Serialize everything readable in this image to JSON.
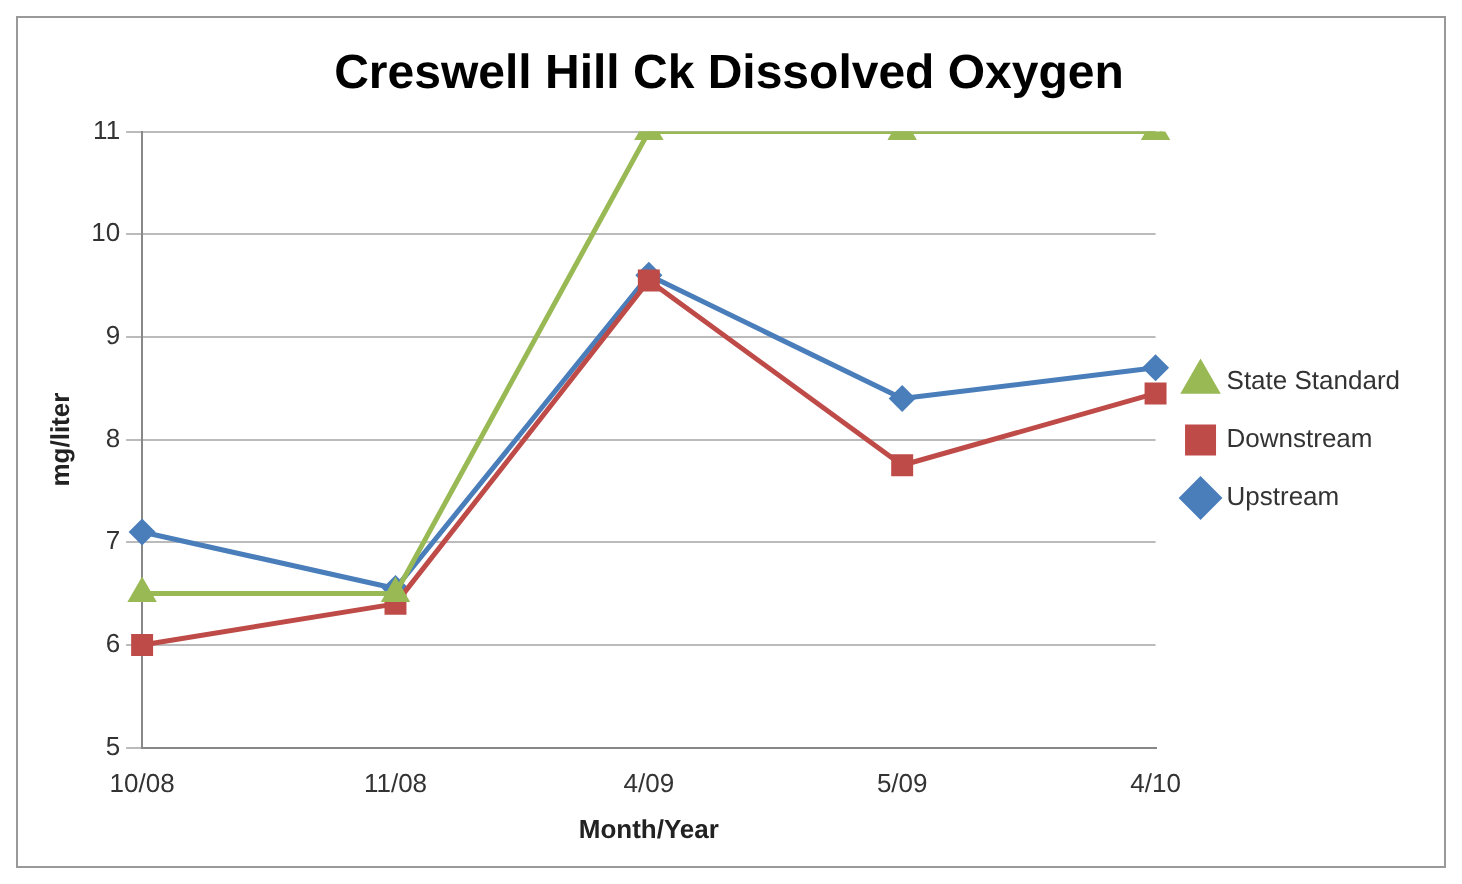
{
  "chart_data": {
    "type": "line",
    "title": "Creswell Hill Ck Dissolved Oxygen",
    "xlabel": "Month/Year",
    "ylabel": "mg/liter",
    "categories": [
      "10/08",
      "11/08",
      "4/09",
      "5/09",
      "4/10"
    ],
    "series": [
      {
        "name": "Upstream",
        "color": "#4a7ebb",
        "marker": "diamond",
        "values": [
          7.1,
          6.55,
          9.6,
          8.4,
          8.7
        ]
      },
      {
        "name": "Downstream",
        "color": "#be4b48",
        "marker": "square",
        "values": [
          6.0,
          6.4,
          9.55,
          7.75,
          8.45
        ]
      },
      {
        "name": "State Standard",
        "color": "#98b954",
        "marker": "triangle",
        "values": [
          6.5,
          6.5,
          11,
          11,
          11
        ]
      }
    ],
    "ylim": [
      5,
      11
    ],
    "yticks": [
      5,
      6,
      7,
      8,
      9,
      10,
      11
    ],
    "grid": "y",
    "legend": "right"
  }
}
